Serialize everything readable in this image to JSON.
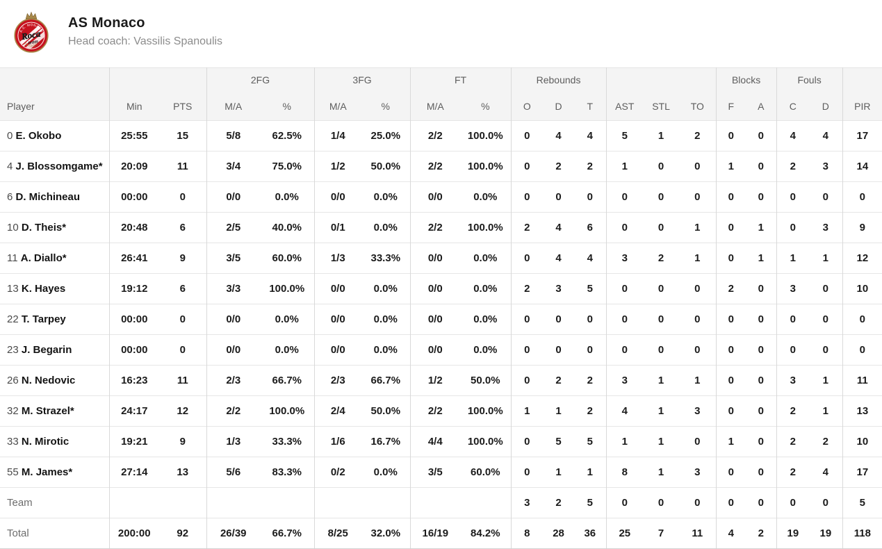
{
  "header": {
    "team_name": "AS Monaco",
    "coach": "Head coach: Vassilis Spanoulis",
    "logo": {
      "top_text": "A.S. MONACO",
      "main_text": "Roca",
      "sub_text": "team",
      "bottom_text": "BASKET",
      "red": "#c6131f",
      "gold": "#a8894a"
    }
  },
  "table": {
    "groups": [
      {
        "label": "",
        "span": 1
      },
      {
        "label": "",
        "span": 2
      },
      {
        "label": "2FG",
        "span": 2
      },
      {
        "label": "3FG",
        "span": 2
      },
      {
        "label": "FT",
        "span": 2
      },
      {
        "label": "Rebounds",
        "span": 3
      },
      {
        "label": "",
        "span": 3
      },
      {
        "label": "Blocks",
        "span": 2
      },
      {
        "label": "Fouls",
        "span": 2
      },
      {
        "label": "",
        "span": 1
      }
    ],
    "columns": [
      "Player",
      "Min",
      "PTS",
      "M/A",
      "%",
      "M/A",
      "%",
      "M/A",
      "%",
      "O",
      "D",
      "T",
      "AST",
      "STL",
      "TO",
      "F",
      "A",
      "C",
      "D",
      "PIR"
    ],
    "rows": [
      {
        "num": "0",
        "name": "E. Okobo",
        "stats": [
          "25:55",
          "15",
          "5/8",
          "62.5%",
          "1/4",
          "25.0%",
          "2/2",
          "100.0%",
          "0",
          "4",
          "4",
          "5",
          "1",
          "2",
          "0",
          "0",
          "4",
          "4",
          "17"
        ]
      },
      {
        "num": "4",
        "name": "J. Blossomgame*",
        "stats": [
          "20:09",
          "11",
          "3/4",
          "75.0%",
          "1/2",
          "50.0%",
          "2/2",
          "100.0%",
          "0",
          "2",
          "2",
          "1",
          "0",
          "0",
          "1",
          "0",
          "2",
          "3",
          "14"
        ]
      },
      {
        "num": "6",
        "name": "D. Michineau",
        "stats": [
          "00:00",
          "0",
          "0/0",
          "0.0%",
          "0/0",
          "0.0%",
          "0/0",
          "0.0%",
          "0",
          "0",
          "0",
          "0",
          "0",
          "0",
          "0",
          "0",
          "0",
          "0",
          "0"
        ]
      },
      {
        "num": "10",
        "name": "D. Theis*",
        "stats": [
          "20:48",
          "6",
          "2/5",
          "40.0%",
          "0/1",
          "0.0%",
          "2/2",
          "100.0%",
          "2",
          "4",
          "6",
          "0",
          "0",
          "1",
          "0",
          "1",
          "0",
          "3",
          "9"
        ]
      },
      {
        "num": "11",
        "name": "A. Diallo*",
        "stats": [
          "26:41",
          "9",
          "3/5",
          "60.0%",
          "1/3",
          "33.3%",
          "0/0",
          "0.0%",
          "0",
          "4",
          "4",
          "3",
          "2",
          "1",
          "0",
          "1",
          "1",
          "1",
          "12"
        ]
      },
      {
        "num": "13",
        "name": "K. Hayes",
        "stats": [
          "19:12",
          "6",
          "3/3",
          "100.0%",
          "0/0",
          "0.0%",
          "0/0",
          "0.0%",
          "2",
          "3",
          "5",
          "0",
          "0",
          "0",
          "2",
          "0",
          "3",
          "0",
          "10"
        ]
      },
      {
        "num": "22",
        "name": "T. Tarpey",
        "stats": [
          "00:00",
          "0",
          "0/0",
          "0.0%",
          "0/0",
          "0.0%",
          "0/0",
          "0.0%",
          "0",
          "0",
          "0",
          "0",
          "0",
          "0",
          "0",
          "0",
          "0",
          "0",
          "0"
        ]
      },
      {
        "num": "23",
        "name": "J. Begarin",
        "stats": [
          "00:00",
          "0",
          "0/0",
          "0.0%",
          "0/0",
          "0.0%",
          "0/0",
          "0.0%",
          "0",
          "0",
          "0",
          "0",
          "0",
          "0",
          "0",
          "0",
          "0",
          "0",
          "0"
        ]
      },
      {
        "num": "26",
        "name": "N. Nedovic",
        "stats": [
          "16:23",
          "11",
          "2/3",
          "66.7%",
          "2/3",
          "66.7%",
          "1/2",
          "50.0%",
          "0",
          "2",
          "2",
          "3",
          "1",
          "1",
          "0",
          "0",
          "3",
          "1",
          "11"
        ]
      },
      {
        "num": "32",
        "name": "M. Strazel*",
        "stats": [
          "24:17",
          "12",
          "2/2",
          "100.0%",
          "2/4",
          "50.0%",
          "2/2",
          "100.0%",
          "1",
          "1",
          "2",
          "4",
          "1",
          "3",
          "0",
          "0",
          "2",
          "1",
          "13"
        ]
      },
      {
        "num": "33",
        "name": "N. Mirotic",
        "stats": [
          "19:21",
          "9",
          "1/3",
          "33.3%",
          "1/6",
          "16.7%",
          "4/4",
          "100.0%",
          "0",
          "5",
          "5",
          "1",
          "1",
          "0",
          "1",
          "0",
          "2",
          "2",
          "10"
        ]
      },
      {
        "num": "55",
        "name": "M. James*",
        "stats": [
          "27:14",
          "13",
          "5/6",
          "83.3%",
          "0/2",
          "0.0%",
          "3/5",
          "60.0%",
          "0",
          "1",
          "1",
          "8",
          "1",
          "3",
          "0",
          "0",
          "2",
          "4",
          "17"
        ]
      }
    ],
    "team_row": {
      "label": "Team",
      "stats": [
        "",
        "",
        "",
        "",
        "",
        "",
        "",
        "",
        "3",
        "2",
        "5",
        "0",
        "0",
        "0",
        "0",
        "0",
        "0",
        "0",
        "5"
      ]
    },
    "total_row": {
      "label": "Total",
      "stats": [
        "200:00",
        "92",
        "26/39",
        "66.7%",
        "8/25",
        "32.0%",
        "16/19",
        "84.2%",
        "8",
        "28",
        "36",
        "25",
        "7",
        "11",
        "4",
        "2",
        "19",
        "19",
        "118"
      ]
    }
  }
}
